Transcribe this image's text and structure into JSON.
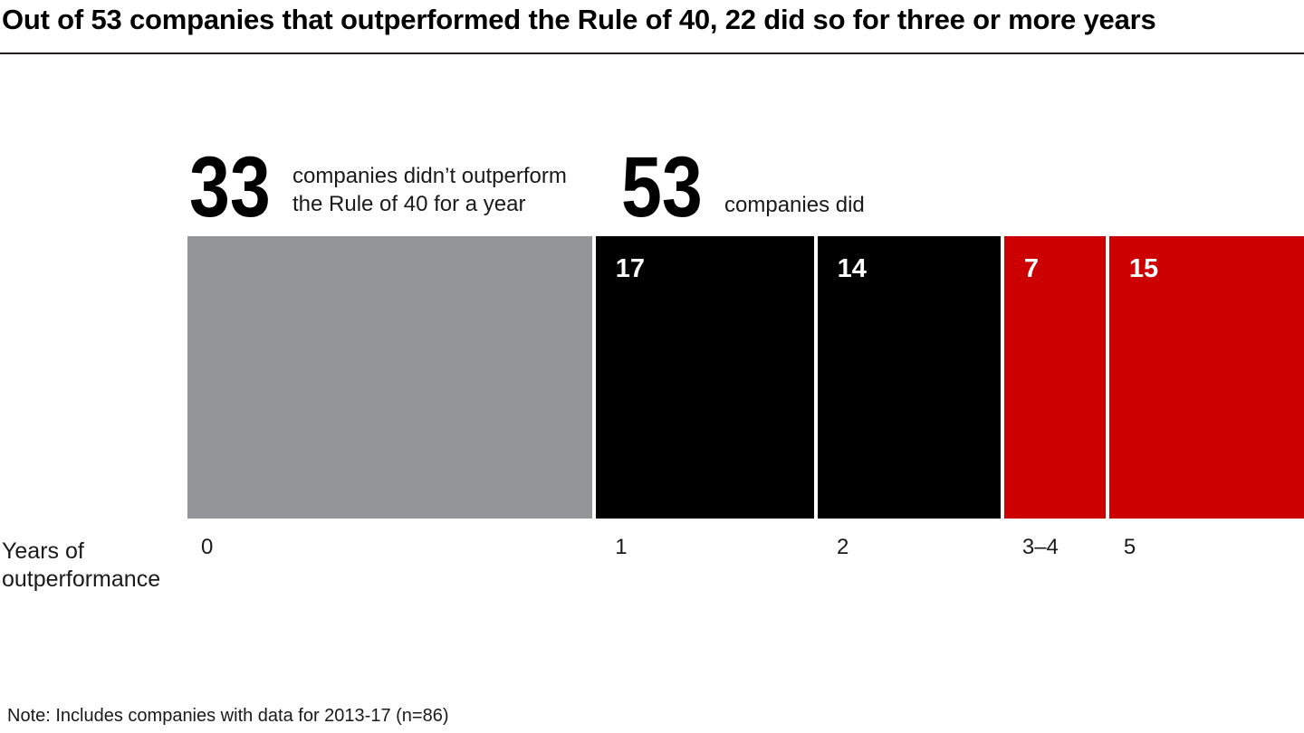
{
  "page": {
    "title": "Out of 53 companies that outperformed the Rule of 40, 22 did so for three or more years",
    "note": "Note: Includes companies with data for 2013-17 (n=86)"
  },
  "stats": {
    "left": {
      "value": "33",
      "desc_line1": "companies didn’t outperform",
      "desc_line2": "the Rule of 40 for a year"
    },
    "right": {
      "value": "53",
      "desc_line1": "companies did"
    }
  },
  "axis": {
    "title_line1": "Years of",
    "title_line2": "outperformance"
  },
  "chart_data": {
    "type": "bar",
    "title": "Out of 53 companies that outperformed the Rule of 40, 22 did so for three or more years",
    "xlabel": "Years of outperformance",
    "categories": [
      "0",
      "1",
      "2",
      "3–4",
      "5"
    ],
    "values": [
      33,
      17,
      14,
      7,
      15
    ],
    "bar_labels": [
      "",
      "17",
      "14",
      "7",
      "15"
    ],
    "colors": [
      "#939598",
      "#000000",
      "#000000",
      "#cc0000",
      "#cc0000"
    ],
    "total_n": 86,
    "legend": "none",
    "layout": "single stacked horizontal band; segment widths proportional to values; white 4px gaps",
    "groups": [
      {
        "headline": "33",
        "description": "companies didn’t outperform the Rule of 40 for a year",
        "categories": [
          "0"
        ]
      },
      {
        "headline": "53",
        "description": "companies did",
        "categories": [
          "1",
          "2",
          "3–4",
          "5"
        ]
      }
    ]
  }
}
